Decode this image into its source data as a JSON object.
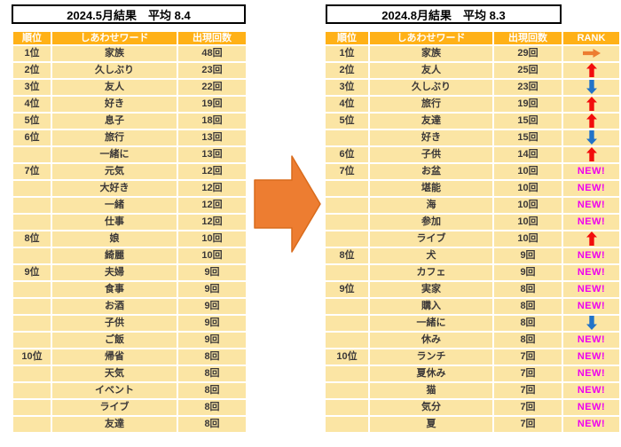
{
  "labels": {
    "new_badge": "NEW!"
  },
  "colors": {
    "header_bg": "#FFB117",
    "header_text": "#FFFFFF",
    "row_bg": "#FBE5A4",
    "cell_text": "#3B3838",
    "title_text": "#000000",
    "up_arrow": "#F20D0D",
    "down_arrow": "#2273C8",
    "same_arrow": "#ED7D31",
    "new_color": "#EE00EE",
    "big_arrow": "#ED7D31",
    "big_arrow_border": "#D96B1C"
  },
  "icons": {
    "up": "up-arrow-icon",
    "down": "down-arrow-icon",
    "same": "right-arrow-icon",
    "transition": "transition-arrow-icon"
  },
  "left_table": {
    "title": "2024.5月結果　平均 8.4",
    "columns": [
      "順位",
      "しあわせワード",
      "出現回数"
    ],
    "rows": [
      {
        "rank": "1位",
        "word": "家族",
        "count": "48回"
      },
      {
        "rank": "2位",
        "word": "久しぶり",
        "count": "23回"
      },
      {
        "rank": "3位",
        "word": "友人",
        "count": "22回"
      },
      {
        "rank": "4位",
        "word": "好き",
        "count": "19回"
      },
      {
        "rank": "5位",
        "word": "息子",
        "count": "18回"
      },
      {
        "rank": "6位",
        "word": "旅行",
        "count": "13回"
      },
      {
        "rank": "",
        "word": "一緒に",
        "count": "13回"
      },
      {
        "rank": "7位",
        "word": "元気",
        "count": "12回"
      },
      {
        "rank": "",
        "word": "大好き",
        "count": "12回"
      },
      {
        "rank": "",
        "word": "一緒",
        "count": "12回"
      },
      {
        "rank": "",
        "word": "仕事",
        "count": "12回"
      },
      {
        "rank": "8位",
        "word": "娘",
        "count": "10回"
      },
      {
        "rank": "",
        "word": "綺麗",
        "count": "10回"
      },
      {
        "rank": "9位",
        "word": "夫婦",
        "count": "9回"
      },
      {
        "rank": "",
        "word": "食事",
        "count": "9回"
      },
      {
        "rank": "",
        "word": "お酒",
        "count": "9回"
      },
      {
        "rank": "",
        "word": "子供",
        "count": "9回"
      },
      {
        "rank": "",
        "word": "ご飯",
        "count": "9回"
      },
      {
        "rank": "10位",
        "word": "帰省",
        "count": "8回"
      },
      {
        "rank": "",
        "word": "天気",
        "count": "8回"
      },
      {
        "rank": "",
        "word": "イベント",
        "count": "8回"
      },
      {
        "rank": "",
        "word": "ライブ",
        "count": "8回"
      },
      {
        "rank": "",
        "word": "友達",
        "count": "8回"
      }
    ]
  },
  "right_table": {
    "title": "2024.8月結果　平均 8.3",
    "columns": [
      "順位",
      "しあわせワード",
      "出現回数",
      "RANK"
    ],
    "rows": [
      {
        "rank": "1位",
        "word": "家族",
        "count": "29回",
        "change": "same"
      },
      {
        "rank": "2位",
        "word": "友人",
        "count": "25回",
        "change": "up"
      },
      {
        "rank": "3位",
        "word": "久しぶり",
        "count": "23回",
        "change": "down"
      },
      {
        "rank": "4位",
        "word": "旅行",
        "count": "19回",
        "change": "up"
      },
      {
        "rank": "5位",
        "word": "友達",
        "count": "15回",
        "change": "up"
      },
      {
        "rank": "",
        "word": "好き",
        "count": "15回",
        "change": "down"
      },
      {
        "rank": "6位",
        "word": "子供",
        "count": "14回",
        "change": "up"
      },
      {
        "rank": "7位",
        "word": "お盆",
        "count": "10回",
        "change": "new"
      },
      {
        "rank": "",
        "word": "堪能",
        "count": "10回",
        "change": "new"
      },
      {
        "rank": "",
        "word": "海",
        "count": "10回",
        "change": "new"
      },
      {
        "rank": "",
        "word": "参加",
        "count": "10回",
        "change": "new"
      },
      {
        "rank": "",
        "word": "ライブ",
        "count": "10回",
        "change": "up"
      },
      {
        "rank": "8位",
        "word": "犬",
        "count": "9回",
        "change": "new"
      },
      {
        "rank": "",
        "word": "カフェ",
        "count": "9回",
        "change": "new"
      },
      {
        "rank": "9位",
        "word": "実家",
        "count": "8回",
        "change": "new"
      },
      {
        "rank": "",
        "word": "購入",
        "count": "8回",
        "change": "new"
      },
      {
        "rank": "",
        "word": "一緒に",
        "count": "8回",
        "change": "down"
      },
      {
        "rank": "",
        "word": "休み",
        "count": "8回",
        "change": "new"
      },
      {
        "rank": "10位",
        "word": "ランチ",
        "count": "7回",
        "change": "new"
      },
      {
        "rank": "",
        "word": "夏休み",
        "count": "7回",
        "change": "new"
      },
      {
        "rank": "",
        "word": "猫",
        "count": "7回",
        "change": "new"
      },
      {
        "rank": "",
        "word": "気分",
        "count": "7回",
        "change": "new"
      },
      {
        "rank": "",
        "word": "夏",
        "count": "7回",
        "change": "new"
      }
    ]
  }
}
